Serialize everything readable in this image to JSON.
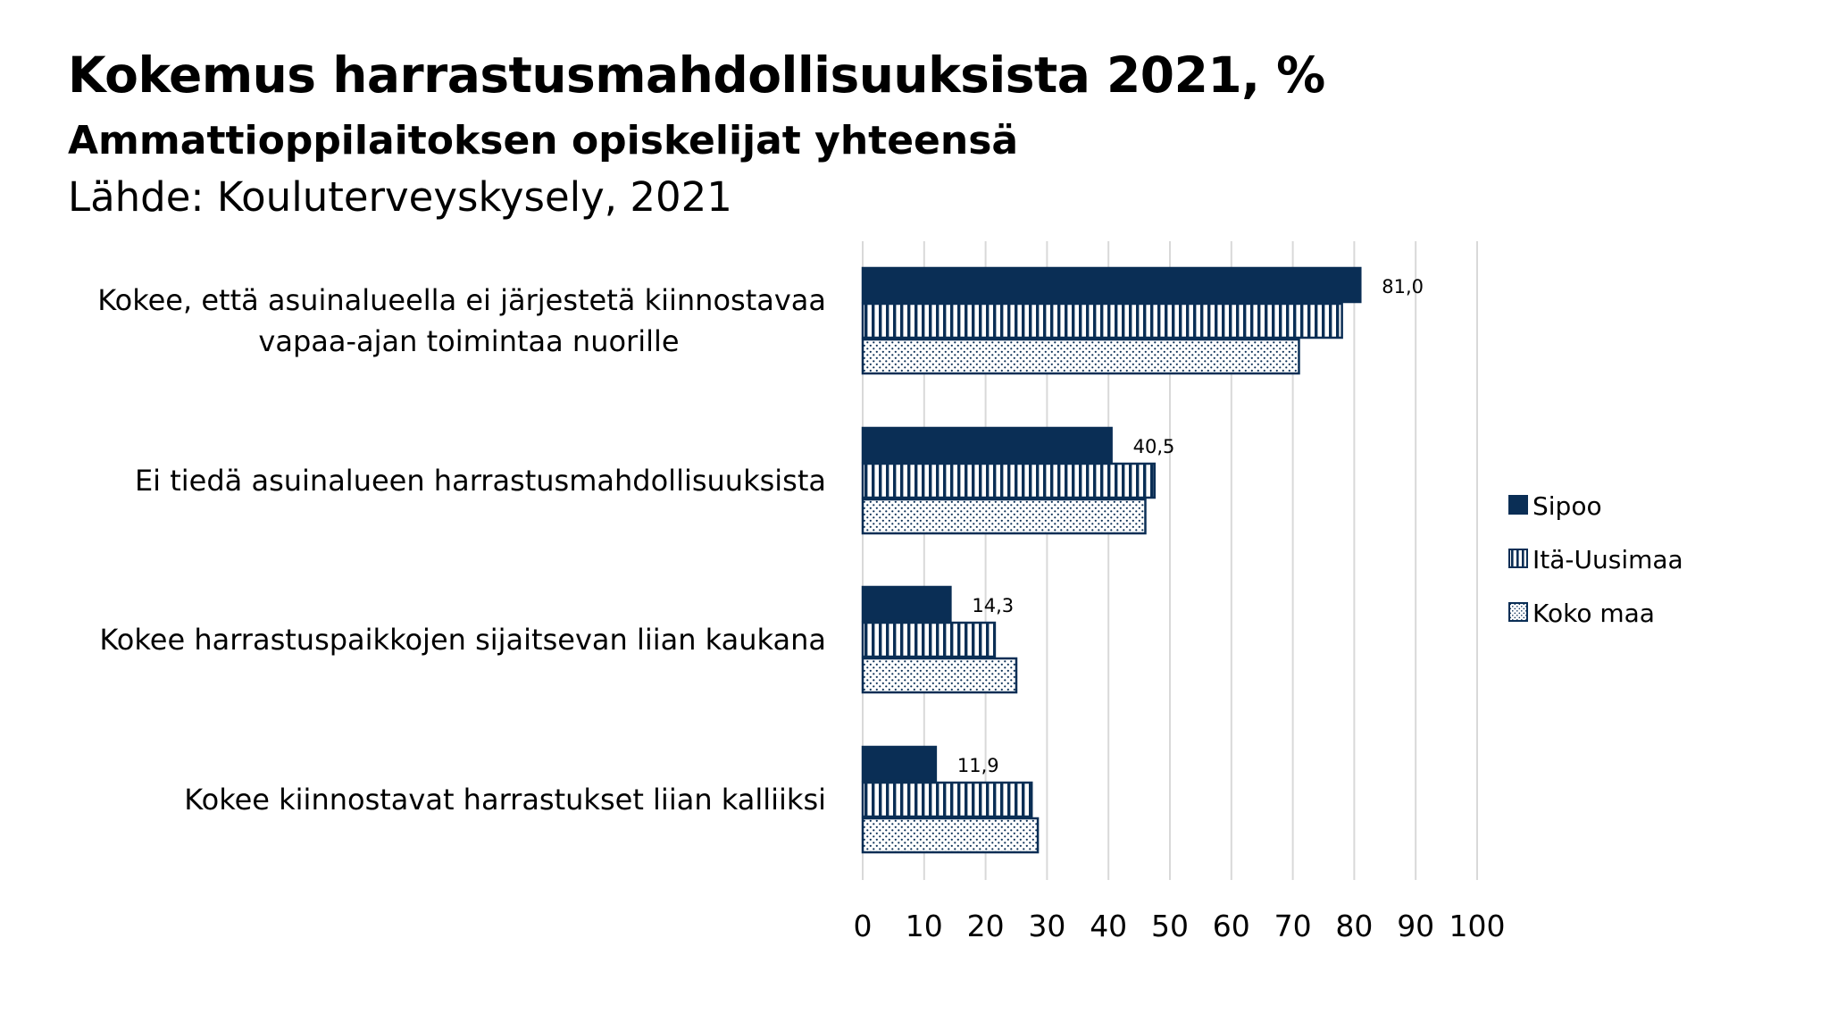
{
  "header": {
    "title": "Kokemus harrastusmahdollisuuksista 2021, %",
    "subtitle": "Ammattioppilaitoksen opiskelijat yhteensä",
    "source": "Lähde: Kouluterveyskysely, 2021"
  },
  "colors": {
    "navy": "#0a2e55",
    "grid": "#d9d9d9"
  },
  "chart_data": {
    "type": "bar",
    "orientation": "horizontal",
    "categories": [
      [
        "Kokee, että asuinalueella ei järjestetä kiinnostavaa",
        "vapaa-ajan toimintaa nuorille"
      ],
      [
        "Ei tiedä asuinalueen harrastusmahdollisuuksista"
      ],
      [
        "Kokee harrastuspaikkojen sijaitsevan liian kaukana"
      ],
      [
        "Kokee kiinnostavat harrastukset liian kalliiksi"
      ]
    ],
    "series": [
      {
        "name": "Sipoo",
        "pattern": "solid",
        "values": [
          81.0,
          40.5,
          14.3,
          11.9
        ],
        "data_labels": [
          "81,0",
          "40,5",
          "14,3",
          "11,9"
        ]
      },
      {
        "name": "Itä-Uusimaa",
        "pattern": "vertical-stripes",
        "values": [
          78,
          47.5,
          21.5,
          27.5
        ]
      },
      {
        "name": "Koko maa",
        "pattern": "dots",
        "values": [
          71,
          46,
          25,
          28.5
        ]
      }
    ],
    "xlim": [
      0,
      100
    ],
    "xticks": [
      "0",
      "10",
      "20",
      "30",
      "40",
      "50",
      "60",
      "70",
      "80",
      "90",
      "100"
    ],
    "grid": true,
    "legend_position": "right"
  }
}
